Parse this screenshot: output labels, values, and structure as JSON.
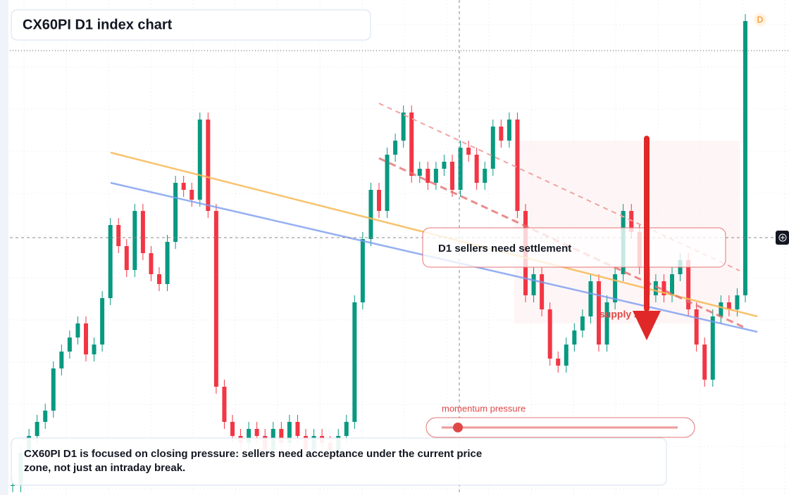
{
  "chart_data": {
    "type": "candlestick",
    "title": "CX60PI D1 index chart",
    "badge": "D",
    "callout": "D1 sellers need settlement",
    "zone_label": "supply zone",
    "slider_label": "momentum pressure",
    "note": "CX60PI D1 is focused on closing pressure: sellers need acceptance under the current price zone, not just an intraday break.",
    "up_color": "#089981",
    "down_color": "#f23645",
    "ylim": [
      0,
      704
    ],
    "values": [
      14,
      60,
      84,
      104,
      120,
      180,
      204,
      224,
      244,
      200,
      214,
      280,
      384,
      354,
      320,
      404,
      344,
      314,
      300,
      360,
      444,
      434,
      420,
      534,
      404,
      154,
      104,
      84,
      74,
      94,
      84,
      64,
      94,
      74,
      104,
      84,
      64,
      84,
      74,
      64,
      84,
      104,
      274,
      364,
      434,
      404,
      484,
      504,
      544,
      454,
      464,
      444,
      464,
      474,
      434,
      494,
      484,
      444,
      464,
      524,
      504,
      534,
      404,
      284,
      314,
      264,
      194,
      184,
      214,
      234,
      254,
      304,
      214,
      274,
      314,
      404,
      374,
      324,
      284,
      304,
      284,
      314,
      334,
      264,
      214,
      164,
      254,
      274,
      264,
      284,
      674
    ]
  }
}
